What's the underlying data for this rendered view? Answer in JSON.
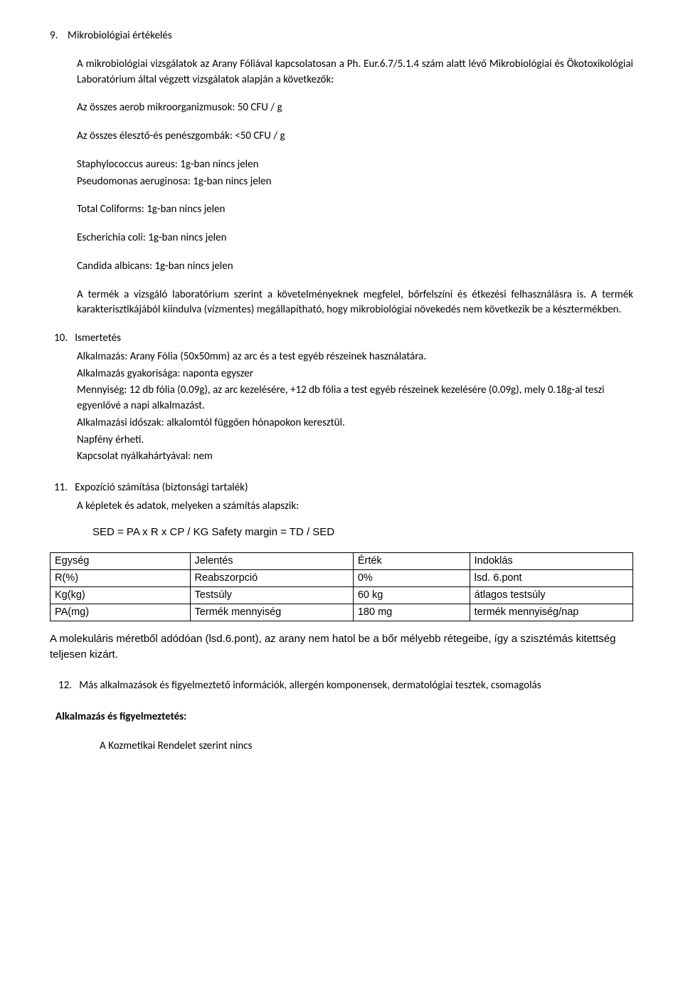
{
  "doc": {
    "bg": "#ffffff",
    "text_color": "#000000",
    "font": "Calibri",
    "alt_font": "Arial"
  },
  "s9": {
    "num": "9.",
    "title": "Mikrobiológiai értékelés",
    "intro": "A mikrobiológiai vizsgálatok az Arany Fóliával kapcsolatosan a Ph. Eur.6.7/5.1.4 szám alatt lévő Mikrobiológiai és Ökotoxikológiai Laboratórium által végzett vizsgálatok alapján a következők:",
    "aerob": "Az összes aerob mikroorganizmusok: 50 CFU / g",
    "eleszto": "Az összes élesztő-és penészgombák: <50 CFU / g",
    "staph": "Staphylococcus aureus: 1g-ban nincs jelen",
    "pseud": "Pseudomonas aeruginosa: 1g-ban nincs jelen",
    "colif": "Total Coliforms: 1g-ban nincs jelen",
    "ecoli": "Escherichia coli: 1g-ban nincs jelen",
    "cand": "Candida albicans: 1g-ban nincs jelen",
    "concl": "A termék a vizsgáló laboratórium szerint a követelményeknek megfelel, bőrfelszíni és étkezési felhasználásra is. A termék karakterisztikájából kiindulva (vízmentes) megállapítható, hogy mikrobiológiai növekedés nem következik be a késztermékben."
  },
  "s10": {
    "num": "10.",
    "title": "Ismertetés",
    "l1": "Alkalmazás: Arany Fólia (50x50mm) az arc és a test egyéb részeinek használatára.",
    "l2": "Alkalmazás gyakorisága: naponta egyszer",
    "l3": "Mennyiség: 12 db fólia (0.09g), az arc kezelésére, +12 db fólia a test egyéb részeinek kezelésére (0.09g), mely 0.18g-al teszi egyenlővé a napi alkalmazást.",
    "l4": "Alkalmazási időszak: alkalomtól függően hónapokon keresztül.",
    "l5": "Napfény érheti.",
    "l6": "Kapcsolat nyálkahártyával: nem"
  },
  "s11": {
    "num": "11.",
    "title": "Expozíció számítása (biztonsági tartalék)",
    "sub": "A képletek és adatok, melyeken a számítás alapszik:",
    "formula": "SED = PA x R x CP / KG Safety margin = TD / SED"
  },
  "table": {
    "h1": "Egység",
    "h2": "Jelentés",
    "h3": "Érték",
    "h4": "Indoklás",
    "r1c1": "R(%)",
    "r1c2": "Reabszorpció",
    "r1c3": "0%",
    "r1c4": "lsd. 6.pont",
    "r2c1": "Kg(kg)",
    "r2c2": "Testsúly",
    "r2c3": "60 kg",
    "r2c4": "átlagos testsúly",
    "r3c1": "PA(mg)",
    "r3c2": "Termék mennyiség",
    "r3c3": "180 mg",
    "r3c4": "termék mennyiség/nap",
    "col_widths": [
      "24%",
      "28%",
      "20%",
      "28%"
    ]
  },
  "mol_note": "A molekuláris méretből adódóan (lsd.6.pont), az arany nem hatol be a bőr mélyebb rétegeibe, így a szisztémás kitettség teljesen kizárt.",
  "s12": {
    "num": "12.",
    "title": "Más alkalmazások és figyelmeztető információk, allergén komponensek, dermatológiai tesztek, csomagolás"
  },
  "app_warn_head": "Alkalmazás és figyelmeztetés:",
  "app_warn_body": "A Kozmetikai Rendelet szerint nincs"
}
